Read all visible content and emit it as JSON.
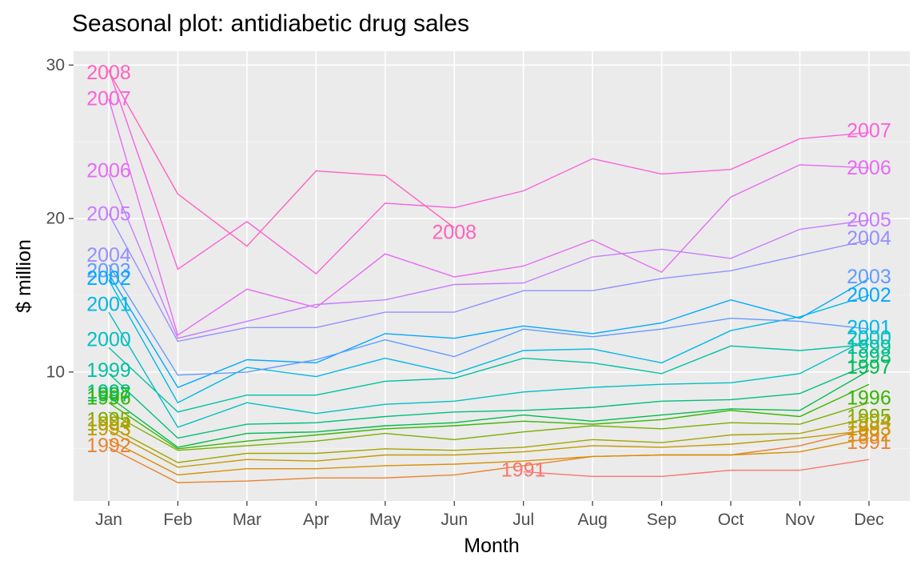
{
  "chart_data": {
    "type": "line",
    "title": "Seasonal plot: antidiabetic drug sales",
    "xlabel": "Month",
    "ylabel": "$ million",
    "categories": [
      "Jan",
      "Feb",
      "Mar",
      "Apr",
      "May",
      "Jun",
      "Jul",
      "Aug",
      "Sep",
      "Oct",
      "Nov",
      "Dec"
    ],
    "yticks": [
      10,
      20,
      30
    ],
    "ylim": [
      1.6,
      30.9
    ],
    "grid": true,
    "legend": "none",
    "series": [
      {
        "name": "1991",
        "color": "#f8766d",
        "start_month": 7,
        "end_month": 12,
        "values": [
          null,
          null,
          null,
          null,
          null,
          null,
          3.5,
          3.2,
          3.2,
          3.6,
          3.6,
          4.3
        ]
      },
      {
        "name": "1992",
        "color": "#ea8331",
        "start_month": 1,
        "end_month": 12,
        "values": [
          5.1,
          2.8,
          2.9,
          3.1,
          3.1,
          3.3,
          3.9,
          4.5,
          4.6,
          4.6,
          5.2,
          6.3
        ]
      },
      {
        "name": "1993",
        "color": "#d89000",
        "start_month": 1,
        "end_month": 12,
        "values": [
          5.6,
          3.3,
          3.7,
          3.7,
          3.9,
          4.0,
          4.2,
          4.5,
          4.6,
          4.6,
          4.8,
          5.7
        ]
      },
      {
        "name": "1994",
        "color": "#c09b00",
        "start_month": 1,
        "end_month": 12,
        "values": [
          6.2,
          3.8,
          4.3,
          4.2,
          4.6,
          4.6,
          4.8,
          5.2,
          5.1,
          5.3,
          5.7,
          6.2
        ]
      },
      {
        "name": "1995",
        "color": "#a3a500",
        "start_month": 1,
        "end_month": 12,
        "values": [
          6.5,
          4.1,
          4.7,
          4.7,
          5.0,
          4.9,
          5.1,
          5.6,
          5.4,
          5.9,
          6.0,
          7.0
        ]
      },
      {
        "name": "1996",
        "color": "#7cae00",
        "start_month": 1,
        "end_month": 12,
        "values": [
          7.4,
          4.9,
          5.2,
          5.5,
          6.0,
          5.6,
          6.1,
          6.5,
          6.3,
          6.7,
          6.6,
          8.0
        ]
      },
      {
        "name": "1997",
        "color": "#39b600",
        "start_month": 1,
        "end_month": 12,
        "values": [
          8.0,
          5.0,
          5.5,
          5.9,
          6.3,
          6.5,
          6.8,
          6.6,
          6.9,
          7.5,
          7.1,
          9.2
        ]
      },
      {
        "name": "1998",
        "color": "#00bb4e",
        "start_month": 1,
        "end_month": 12,
        "values": [
          8.4,
          5.1,
          6.0,
          6.1,
          6.5,
          6.7,
          7.2,
          6.8,
          7.2,
          7.6,
          7.5,
          10.1
        ]
      },
      {
        "name": "1999",
        "color": "#00bf7d",
        "start_month": 1,
        "end_month": 12,
        "values": [
          9.9,
          5.7,
          6.6,
          6.7,
          7.1,
          7.4,
          7.5,
          7.7,
          8.1,
          8.2,
          8.6,
          10.5
        ]
      },
      {
        "name": "2000",
        "color": "#00c1a3",
        "start_month": 1,
        "end_month": 12,
        "values": [
          11.6,
          7.4,
          8.5,
          8.5,
          9.4,
          9.6,
          10.9,
          10.6,
          9.9,
          11.7,
          11.4,
          11.8
        ]
      },
      {
        "name": "2001",
        "color": "#00bfc4",
        "start_month": 1,
        "end_month": 12,
        "values": [
          13.9,
          6.4,
          8.0,
          7.3,
          7.9,
          8.1,
          8.7,
          9.0,
          9.2,
          9.3,
          9.9,
          12.2
        ]
      },
      {
        "name": "2002",
        "color": "#00b8e7",
        "start_month": 1,
        "end_month": 12,
        "values": [
          16.0,
          8.0,
          10.3,
          9.7,
          10.9,
          9.9,
          11.4,
          11.5,
          10.6,
          12.7,
          13.6,
          15.0
        ]
      },
      {
        "name": "2003",
        "color": "#00a9ff",
        "start_month": 1,
        "end_month": 12,
        "values": [
          16.4,
          9.0,
          10.8,
          10.6,
          12.5,
          12.2,
          13.0,
          12.5,
          13.2,
          14.7,
          13.5,
          16.1
        ]
      },
      {
        "name": "2004",
        "color": "#619cff",
        "start_month": 1,
        "end_month": 12,
        "values": [
          17.0,
          9.8,
          10.0,
          10.8,
          12.1,
          11.0,
          12.8,
          12.3,
          12.8,
          13.5,
          13.3,
          12.8
        ]
      },
      {
        "name": "2005",
        "color": "#9590ff",
        "start_month": 1,
        "end_month": 12,
        "values": [
          20.3,
          12.0,
          12.9,
          12.9,
          13.9,
          13.9,
          15.3,
          15.3,
          16.1,
          16.6,
          17.6,
          18.6
        ]
      },
      {
        "name": "2006",
        "color": "#c77cff",
        "start_month": 1,
        "end_month": 12,
        "values": [
          22.9,
          12.2,
          13.3,
          14.4,
          14.7,
          15.7,
          15.8,
          17.5,
          18.0,
          17.4,
          19.3,
          19.9
        ]
      },
      {
        "name": "2007",
        "color": "#e76bf3",
        "start_month": 1,
        "end_month": 12,
        "values": [
          27.8,
          12.4,
          15.4,
          14.2,
          17.7,
          16.2,
          16.9,
          18.6,
          16.5,
          21.4,
          23.5,
          23.3
        ]
      },
      {
        "name": "2008",
        "color": "#fa62db",
        "start_month": 1,
        "end_month": 12,
        "values": [
          29.7,
          16.7,
          19.8,
          16.4,
          21.0,
          20.7,
          21.8,
          23.9,
          22.9,
          23.2,
          25.2,
          25.6
        ]
      },
      {
        "name": "2008",
        "color": "#ff62bc",
        "start_month": 1,
        "end_month": 6,
        "values": [
          29.6,
          21.6,
          18.2,
          23.1,
          22.8,
          19.4,
          null,
          null,
          null,
          null,
          null,
          null
        ]
      }
    ],
    "start_labels": [
      {
        "text": "2008",
        "color": "#ff62bc",
        "month": 1,
        "y": 29.5
      },
      {
        "text": "2007",
        "color": "#fa62db",
        "month": 1,
        "y": 27.8
      },
      {
        "text": "2006",
        "color": "#e76bf3",
        "month": 1,
        "y": 23.1
      },
      {
        "text": "2005",
        "color": "#c77cff",
        "month": 1,
        "y": 20.3
      },
      {
        "text": "2004",
        "color": "#9590ff",
        "month": 1,
        "y": 17.6
      },
      {
        "text": "2003",
        "color": "#619cff",
        "month": 1,
        "y": 16.6
      },
      {
        "text": "2002",
        "color": "#00a9ff",
        "month": 1,
        "y": 16.1
      },
      {
        "text": "2001",
        "color": "#00b8e7",
        "month": 1,
        "y": 14.4
      },
      {
        "text": "2000",
        "color": "#00bfc4",
        "month": 1,
        "y": 12.1
      },
      {
        "text": "1999",
        "color": "#00c1a3",
        "month": 1,
        "y": 10.1
      },
      {
        "text": "1998",
        "color": "#00bf7d",
        "month": 1,
        "y": 8.7
      },
      {
        "text": "1997",
        "color": "#00bb4e",
        "month": 1,
        "y": 8.5
      },
      {
        "text": "1996",
        "color": "#39b600",
        "month": 1,
        "y": 8.3
      },
      {
        "text": "1995",
        "color": "#7cae00",
        "month": 1,
        "y": 6.9
      },
      {
        "text": "1994",
        "color": "#a3a500",
        "month": 1,
        "y": 6.6
      },
      {
        "text": "1993",
        "color": "#c09b00",
        "month": 1,
        "y": 6.3
      },
      {
        "text": "1992",
        "color": "#ea8331",
        "month": 1,
        "y": 5.2
      }
    ],
    "end_labels": [
      {
        "text": "1991",
        "color": "#f8766d",
        "month": 7,
        "y": 3.6
      },
      {
        "text": "2008",
        "color": "#ff62bc",
        "month": 6,
        "y": 19.1
      },
      {
        "text": "2007",
        "color": "#fa62db",
        "month": 12,
        "y": 25.7
      },
      {
        "text": "2006",
        "color": "#e76bf3",
        "month": 12,
        "y": 23.3
      },
      {
        "text": "2005",
        "color": "#c77cff",
        "month": 12,
        "y": 19.9
      },
      {
        "text": "2004",
        "color": "#9590ff",
        "month": 12,
        "y": 18.7
      },
      {
        "text": "2003",
        "color": "#619cff",
        "month": 12,
        "y": 16.2
      },
      {
        "text": "2002",
        "color": "#00a9ff",
        "month": 12,
        "y": 15.0
      },
      {
        "text": "2001",
        "color": "#00b8e7",
        "month": 12,
        "y": 12.9
      },
      {
        "text": "2000",
        "color": "#00bfc4",
        "month": 12,
        "y": 12.2
      },
      {
        "text": "1999",
        "color": "#00c1a3",
        "month": 12,
        "y": 11.6
      },
      {
        "text": "1998",
        "color": "#00bf7d",
        "month": 12,
        "y": 11.0
      },
      {
        "text": "1997",
        "color": "#00bb4e",
        "month": 12,
        "y": 10.3
      },
      {
        "text": "1996",
        "color": "#39b600",
        "month": 12,
        "y": 8.3
      },
      {
        "text": "1995",
        "color": "#7cae00",
        "month": 12,
        "y": 7.1
      },
      {
        "text": "1994",
        "color": "#a3a500",
        "month": 12,
        "y": 6.8
      },
      {
        "text": "1993",
        "color": "#c09b00",
        "month": 12,
        "y": 6.3
      },
      {
        "text": "1992",
        "color": "#d89000",
        "month": 12,
        "y": 5.9
      },
      {
        "text": "1991",
        "color": "#ea8331",
        "month": 12,
        "y": 5.4
      }
    ]
  }
}
